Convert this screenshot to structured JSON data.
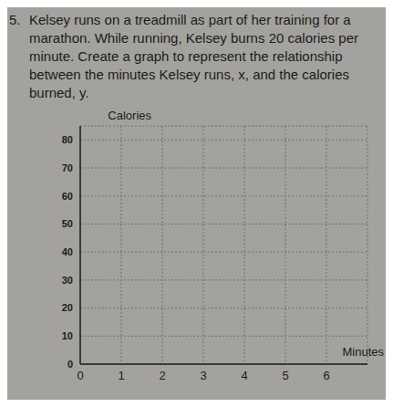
{
  "problem": {
    "number": "5.",
    "text": "Kelsey runs on a treadmill as part of her training for a marathon. While running, Kelsey burns 20 calories per minute. Create a graph to represent the relationship between the minutes Kelsey runs, x, and the calories burned, y."
  },
  "chart_data": {
    "type": "line",
    "x_label": "Minutes",
    "y_label": "Calories",
    "xlim": [
      0,
      7
    ],
    "xticks": [
      0,
      1,
      2,
      3,
      4,
      5,
      6
    ],
    "ylim": [
      0,
      85
    ],
    "yticks": [
      0,
      10,
      20,
      30,
      40,
      50,
      60,
      70,
      80
    ],
    "grid": true
  }
}
